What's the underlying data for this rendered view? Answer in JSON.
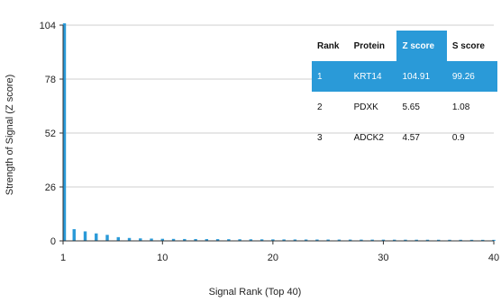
{
  "chart_data": {
    "type": "bar",
    "x_ticks": [
      1,
      10,
      20,
      30,
      40
    ],
    "y_ticks": [
      0,
      26,
      52,
      78,
      104
    ],
    "xlim": [
      1,
      40
    ],
    "ylim": [
      0,
      104
    ],
    "xlabel": "Signal Rank (Top 40)",
    "ylabel": "Strength of Signal (Z score)",
    "grid": "horizontal",
    "bar_color": "#2a9ad8",
    "values": [
      104.91,
      5.65,
      4.57,
      3.6,
      2.9,
      1.8,
      1.4,
      1.2,
      1.1,
      1.0,
      0.95,
      0.9,
      0.88,
      0.85,
      0.83,
      0.8,
      0.78,
      0.76,
      0.74,
      0.72,
      0.7,
      0.68,
      0.66,
      0.65,
      0.64,
      0.63,
      0.62,
      0.61,
      0.6,
      0.59,
      0.58,
      0.57,
      0.56,
      0.55,
      0.54,
      0.53,
      0.52,
      0.51,
      0.5,
      0.49
    ]
  },
  "table": {
    "headers": [
      "Rank",
      "Protein",
      "Z score",
      "S score"
    ],
    "highlight_color": "#2a9ad8",
    "rows": [
      [
        "1",
        "KRT14",
        "104.91",
        "99.26"
      ],
      [
        "2",
        "PDXK",
        "5.65",
        "1.08"
      ],
      [
        "3",
        "ADCK2",
        "4.57",
        "0.9"
      ]
    ]
  }
}
